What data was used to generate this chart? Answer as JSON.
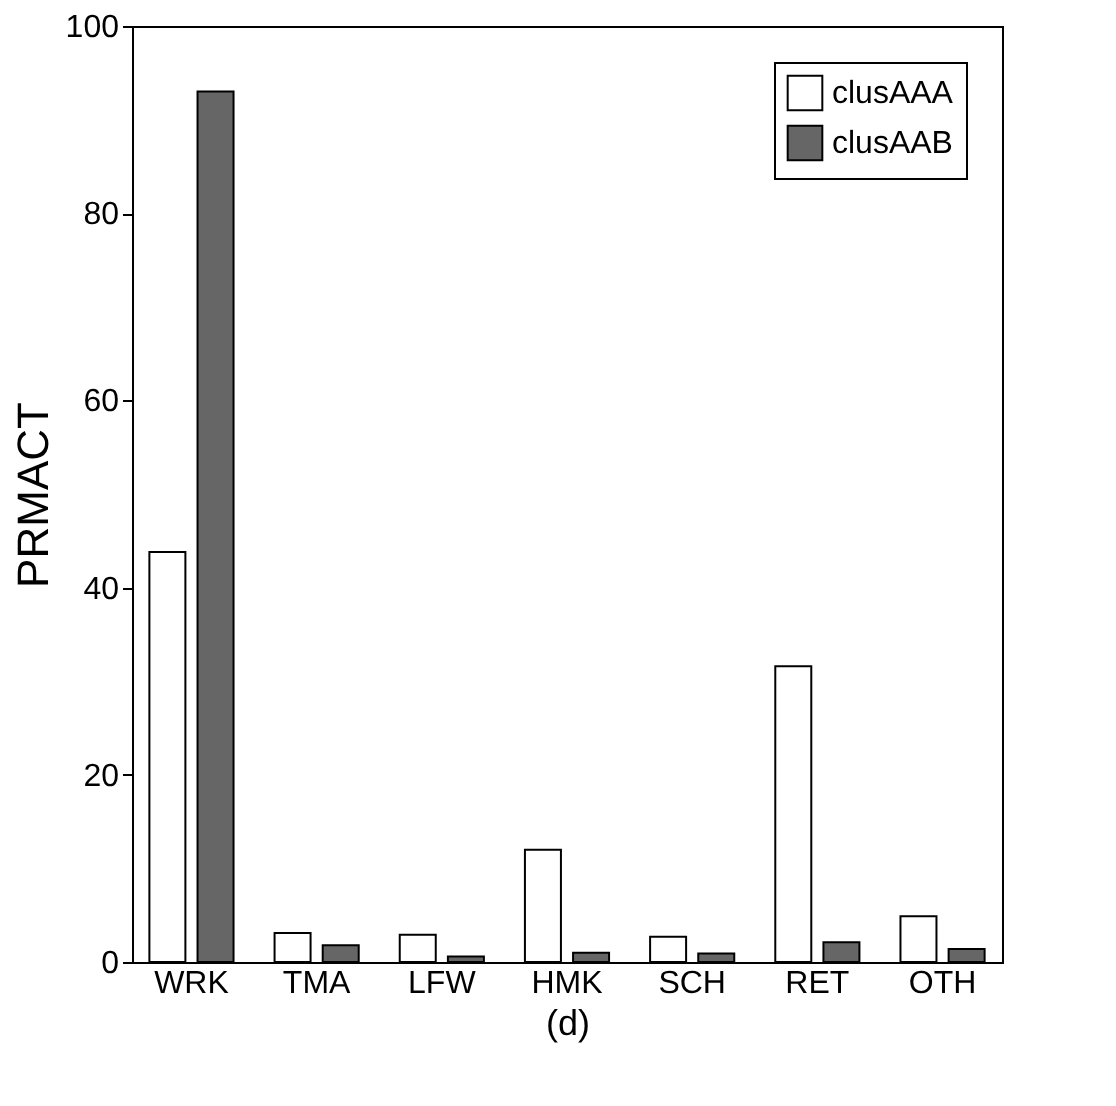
{
  "chart_data": {
    "type": "bar",
    "xlabel": "(d)",
    "ylabel": "PRMACT",
    "categories": [
      "WRK",
      "TMA",
      "LFW",
      "HMK",
      "SCH",
      "RET",
      "OTH"
    ],
    "series": [
      {
        "name": "clusAAA",
        "color": "#ffffff",
        "values": [
          43.8,
          3.1,
          2.9,
          12,
          2.7,
          31.6,
          4.9
        ]
      },
      {
        "name": "clusAAB",
        "color": "#666666",
        "values": [
          93,
          1.8,
          0.6,
          1.0,
          0.9,
          2.1,
          1.4
        ]
      }
    ],
    "ylim": [
      0,
      100
    ],
    "yticks": [
      0,
      20,
      40,
      60,
      80,
      100
    ],
    "grid": false,
    "legend": "top right"
  }
}
